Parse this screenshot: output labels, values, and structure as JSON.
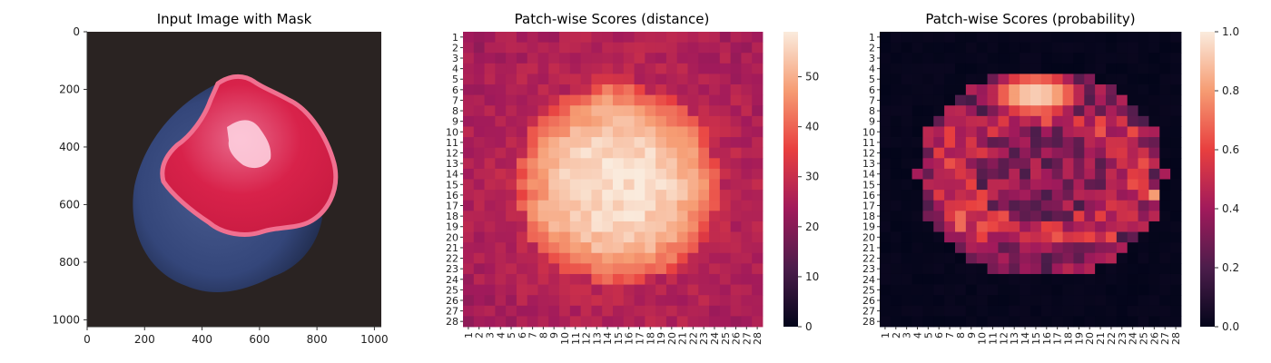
{
  "panels": {
    "image": {
      "title": "Input Image with Mask",
      "x_ticks": [
        "0",
        "200",
        "400",
        "600",
        "800",
        "1000"
      ],
      "y_ticks": [
        "0",
        "200",
        "400",
        "600",
        "800",
        "1000"
      ]
    },
    "distance": {
      "title": "Patch-wise Scores (distance)",
      "colorbar_ticks": [
        "0",
        "10",
        "20",
        "30",
        "40",
        "50"
      ]
    },
    "probability": {
      "title": "Patch-wise Scores (probability)",
      "colorbar_ticks": [
        "0.0",
        "0.2",
        "0.4",
        "0.6",
        "0.8",
        "1.0"
      ]
    }
  },
  "colors": {
    "background_dark": "#2a2322",
    "shell_blue": "#3a4a78",
    "mask_red": "#d8224a",
    "mask_rim": "#f06a8a",
    "rocket_stops": [
      "#03051a",
      "#4c1d4b",
      "#a11a5b",
      "#e83f3f",
      "#f69c73",
      "#faebdd"
    ]
  },
  "chart_data": [
    {
      "type": "image",
      "title": "Input Image with Mask",
      "xlim": [
        0,
        1024
      ],
      "ylim": [
        1024,
        0
      ],
      "xticks": [
        0,
        200,
        400,
        600,
        800,
        1000
      ],
      "yticks": [
        0,
        200,
        400,
        600,
        800,
        1000
      ],
      "content": "Dark-blue shell on dark background, with the broken open region highlighted by a red segmentation mask"
    },
    {
      "type": "heatmap",
      "title": "Patch-wise Scores (distance)",
      "rows": 28,
      "cols": 28,
      "row_labels": [
        "1",
        "2",
        "3",
        "4",
        "5",
        "6",
        "7",
        "8",
        "9",
        "10",
        "11",
        "12",
        "13",
        "14",
        "15",
        "16",
        "17",
        "18",
        "19",
        "20",
        "21",
        "22",
        "23",
        "24",
        "25",
        "26",
        "27",
        "28"
      ],
      "col_labels": [
        "1",
        "2",
        "3",
        "4",
        "5",
        "6",
        "7",
        "8",
        "9",
        "10",
        "11",
        "12",
        "13",
        "14",
        "15",
        "16",
        "17",
        "18",
        "19",
        "20",
        "21",
        "22",
        "23",
        "24",
        "25",
        "26",
        "27",
        "28"
      ],
      "vmin": 0,
      "vmax": 59,
      "colorbar_ticks": [
        0,
        10,
        20,
        30,
        40,
        50
      ],
      "colormap": "rocket",
      "pattern": {
        "background": 24,
        "blob_peak": 57,
        "blob_center": [
          15,
          15
        ],
        "blob_radius": [
          9,
          9
        ],
        "upper_peak_center": [
          14,
          6
        ],
        "lower_left_peak_center": [
          8,
          19
        ]
      }
    },
    {
      "type": "heatmap",
      "title": "Patch-wise Scores (probability)",
      "rows": 28,
      "cols": 28,
      "row_labels": [
        "1",
        "2",
        "3",
        "4",
        "5",
        "6",
        "7",
        "8",
        "9",
        "10",
        "11",
        "12",
        "13",
        "14",
        "15",
        "16",
        "17",
        "18",
        "19",
        "20",
        "21",
        "22",
        "23",
        "24",
        "25",
        "26",
        "27",
        "28"
      ],
      "col_labels": [
        "1",
        "2",
        "3",
        "4",
        "5",
        "6",
        "7",
        "8",
        "9",
        "10",
        "11",
        "12",
        "13",
        "14",
        "15",
        "16",
        "17",
        "18",
        "19",
        "20",
        "21",
        "22",
        "23",
        "24",
        "25",
        "26",
        "27",
        "28"
      ],
      "vmin": 0.0,
      "vmax": 1.0,
      "colorbar_ticks": [
        0.0,
        0.2,
        0.4,
        0.6,
        0.8,
        1.0
      ],
      "colormap": "rocket",
      "pattern": {
        "background": 0.0,
        "top_blob_peak": 0.95,
        "top_blob_center": [
          15,
          6.5
        ],
        "ring_peak": 0.6,
        "lower_left_peak": 0.9,
        "right_spot": [
          26,
          16
        ]
      }
    }
  ]
}
